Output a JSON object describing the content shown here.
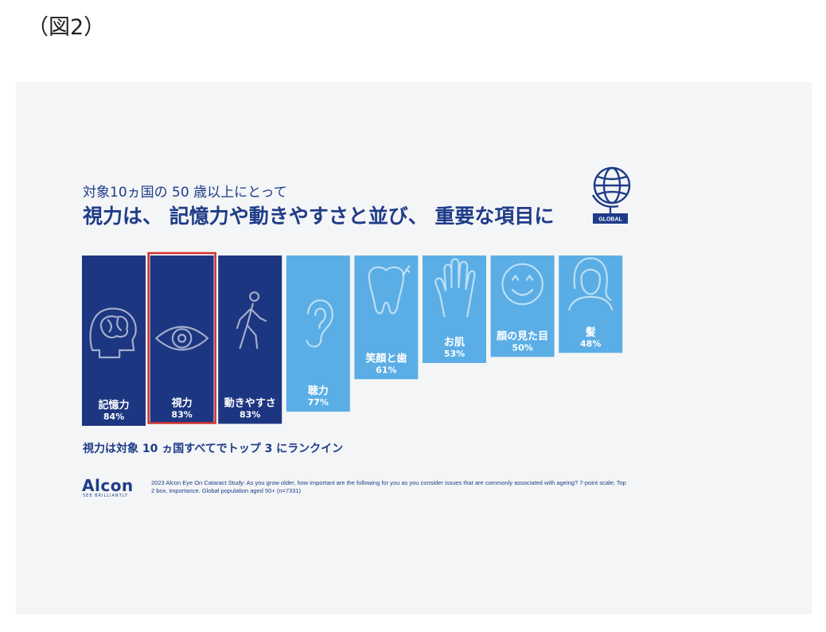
{
  "figure_label": "（図2）",
  "subtitle": "対象10ヵ国の 50 歳以上にとって",
  "headline": "視力は、 記憶力や動きやすさと並び、 重要な項目に",
  "globe_badge": "GLOBAL",
  "rank_note": "視力は対象 10 ヵ国すべてでトップ 3 にランクイン",
  "logo": {
    "name": "Alcon",
    "tagline": "SEE BRILLIANTLY"
  },
  "source": "2023 Alcon Eye On Cataract Study: As you grow older, how important are the following for you as you consider issues that are commonly associated with ageing? 7-point scale; Top 2 box, importance. Global population aged 50+ (n=7331)",
  "colors": {
    "dark": "#1d3681",
    "light": "#5aaee5",
    "highlight": "#d0312d",
    "text": "#1f3c88"
  },
  "chart_data": {
    "type": "bar",
    "categories": [
      "記憶力",
      "視力",
      "動きやすさ",
      "聴力",
      "笑顔と歯",
      "お肌",
      "顔の見た目",
      "髪"
    ],
    "values": [
      84,
      83,
      83,
      77,
      61,
      53,
      50,
      48
    ],
    "value_labels": [
      "84%",
      "83%",
      "83%",
      "77%",
      "61%",
      "53%",
      "50%",
      "48%"
    ],
    "icons": [
      "brain-icon",
      "eye-icon",
      "walking-person-icon",
      "ear-icon",
      "tooth-icon",
      "hand-icon",
      "smiley-face-icon",
      "woman-head-icon"
    ],
    "bar_colors": [
      "dark",
      "dark",
      "dark",
      "light",
      "light",
      "light",
      "light",
      "light"
    ],
    "highlighted": "視力",
    "unit": "%"
  }
}
